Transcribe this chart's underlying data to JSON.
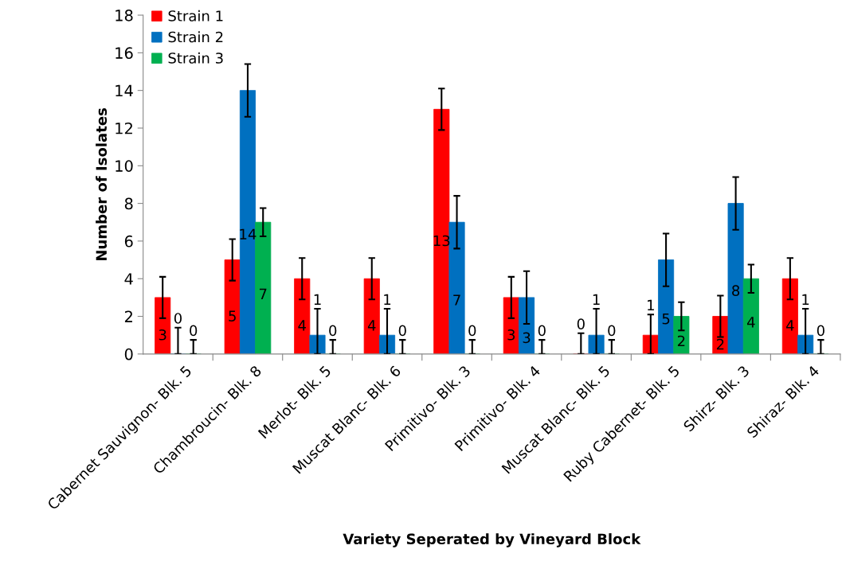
{
  "chart_data": {
    "type": "bar",
    "xlabel": "Variety Seperated by Vineyard Block",
    "ylabel": "Number of Isolates",
    "categories": [
      "Cabernet Sauvignon- Blk. 5",
      "Chambroucin- Blk. 8",
      "Merlot- Blk. 5",
      "Muscat Blanc- Blk. 6",
      "Primitivo- Blk. 3",
      "Primitivo- Blk. 4",
      "Muscat Blanc- Blk. 5",
      "Ruby Cabernet- Blk. 5",
      "Shirz- Blk. 3",
      "Shiraz- Blk. 4"
    ],
    "series": [
      {
        "name": "Strain 1",
        "color": "#ff0000",
        "values": [
          3,
          5,
          4,
          4,
          13,
          3,
          0,
          1,
          2,
          4
        ],
        "errors": [
          [
            1.9,
            4.1
          ],
          [
            3.9,
            6.1
          ],
          [
            2.9,
            5.1
          ],
          [
            2.9,
            5.1
          ],
          [
            11.9,
            14.1
          ],
          [
            1.9,
            4.1
          ],
          [
            0,
            1.1
          ],
          [
            0,
            2.1
          ],
          [
            0.9,
            3.1
          ],
          [
            2.9,
            5.1
          ]
        ]
      },
      {
        "name": "Strain 2",
        "color": "#0070c0",
        "values": [
          0,
          14,
          1,
          1,
          7,
          3,
          1,
          5,
          8,
          1
        ],
        "errors": [
          [
            0,
            1.4
          ],
          [
            12.6,
            15.4
          ],
          [
            0,
            2.4
          ],
          [
            0,
            2.4
          ],
          [
            5.6,
            8.4
          ],
          [
            1.6,
            4.4
          ],
          [
            0,
            2.4
          ],
          [
            3.6,
            6.4
          ],
          [
            6.6,
            9.4
          ],
          [
            0,
            2.4
          ]
        ]
      },
      {
        "name": "Strain 3",
        "color": "#00b050",
        "values": [
          0,
          7,
          0,
          0,
          0,
          0,
          0,
          2,
          4,
          0
        ],
        "errors": [
          [
            0,
            0.75
          ],
          [
            6.25,
            7.75
          ],
          [
            0,
            0.75
          ],
          [
            0,
            0.75
          ],
          [
            0,
            0.75
          ],
          [
            0,
            0.75
          ],
          [
            0,
            0.75
          ],
          [
            1.25,
            2.75
          ],
          [
            3.25,
            4.75
          ],
          [
            0,
            0.75
          ]
        ]
      }
    ],
    "ylim": [
      0,
      18
    ],
    "yticks": [
      0,
      2,
      4,
      6,
      8,
      10,
      12,
      14,
      16,
      18
    ],
    "data_labels": true,
    "legend": "top left",
    "grid": false
  }
}
